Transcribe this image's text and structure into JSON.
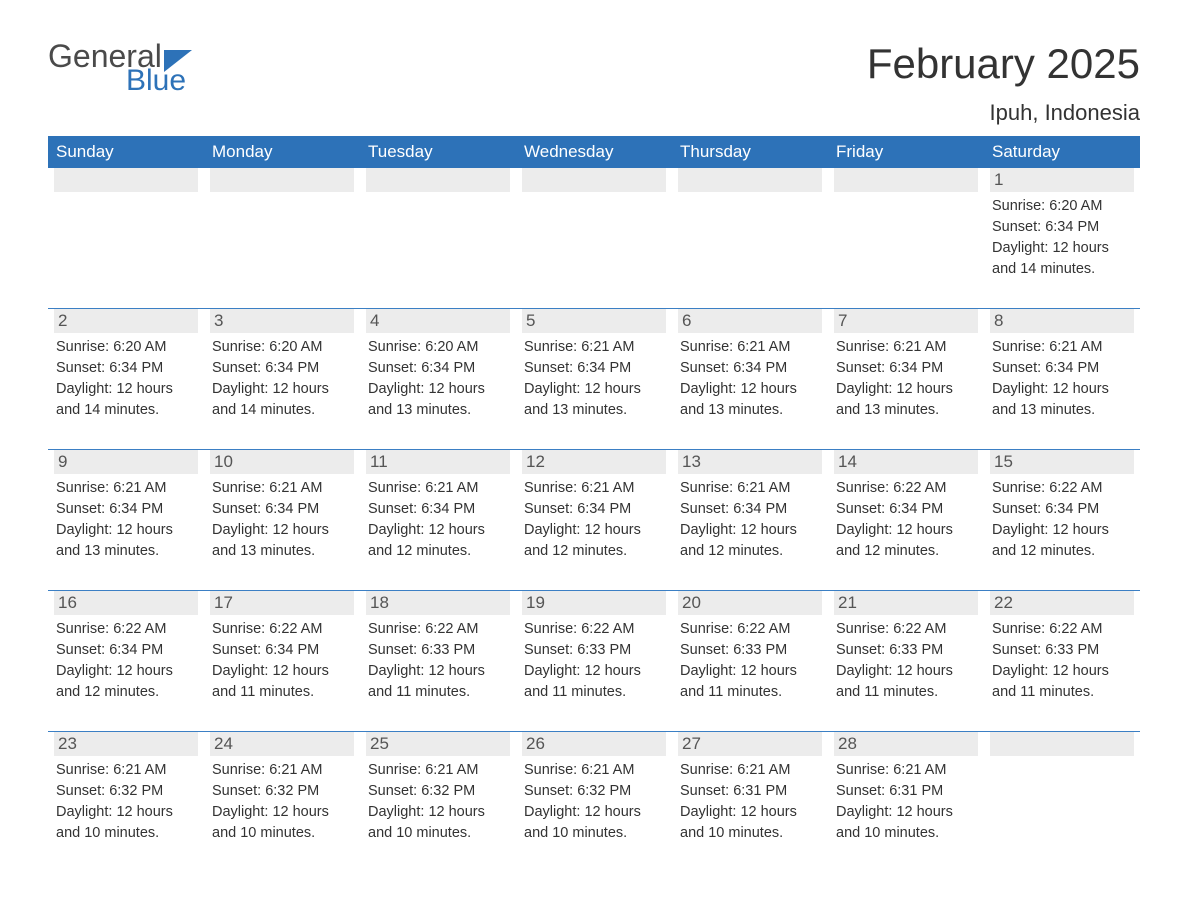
{
  "logo": {
    "text_general": "General",
    "text_blue": "Blue",
    "icon_color": "#2d72b8"
  },
  "title": "February 2025",
  "location": "Ipuh, Indonesia",
  "colors": {
    "header_bg": "#2d72b8",
    "header_text": "#ffffff",
    "band_bg": "#ececec",
    "band_text": "#555555",
    "body_text": "#333333",
    "row_border": "#3b7fc4",
    "page_bg": "#ffffff"
  },
  "weekdays": [
    "Sunday",
    "Monday",
    "Tuesday",
    "Wednesday",
    "Thursday",
    "Friday",
    "Saturday"
  ],
  "weeks": [
    [
      {
        "day": "",
        "sunrise": "",
        "sunset": "",
        "daylight": ""
      },
      {
        "day": "",
        "sunrise": "",
        "sunset": "",
        "daylight": ""
      },
      {
        "day": "",
        "sunrise": "",
        "sunset": "",
        "daylight": ""
      },
      {
        "day": "",
        "sunrise": "",
        "sunset": "",
        "daylight": ""
      },
      {
        "day": "",
        "sunrise": "",
        "sunset": "",
        "daylight": ""
      },
      {
        "day": "",
        "sunrise": "",
        "sunset": "",
        "daylight": ""
      },
      {
        "day": "1",
        "sunrise": "Sunrise: 6:20 AM",
        "sunset": "Sunset: 6:34 PM",
        "daylight": "Daylight: 12 hours and 14 minutes."
      }
    ],
    [
      {
        "day": "2",
        "sunrise": "Sunrise: 6:20 AM",
        "sunset": "Sunset: 6:34 PM",
        "daylight": "Daylight: 12 hours and 14 minutes."
      },
      {
        "day": "3",
        "sunrise": "Sunrise: 6:20 AM",
        "sunset": "Sunset: 6:34 PM",
        "daylight": "Daylight: 12 hours and 14 minutes."
      },
      {
        "day": "4",
        "sunrise": "Sunrise: 6:20 AM",
        "sunset": "Sunset: 6:34 PM",
        "daylight": "Daylight: 12 hours and 13 minutes."
      },
      {
        "day": "5",
        "sunrise": "Sunrise: 6:21 AM",
        "sunset": "Sunset: 6:34 PM",
        "daylight": "Daylight: 12 hours and 13 minutes."
      },
      {
        "day": "6",
        "sunrise": "Sunrise: 6:21 AM",
        "sunset": "Sunset: 6:34 PM",
        "daylight": "Daylight: 12 hours and 13 minutes."
      },
      {
        "day": "7",
        "sunrise": "Sunrise: 6:21 AM",
        "sunset": "Sunset: 6:34 PM",
        "daylight": "Daylight: 12 hours and 13 minutes."
      },
      {
        "day": "8",
        "sunrise": "Sunrise: 6:21 AM",
        "sunset": "Sunset: 6:34 PM",
        "daylight": "Daylight: 12 hours and 13 minutes."
      }
    ],
    [
      {
        "day": "9",
        "sunrise": "Sunrise: 6:21 AM",
        "sunset": "Sunset: 6:34 PM",
        "daylight": "Daylight: 12 hours and 13 minutes."
      },
      {
        "day": "10",
        "sunrise": "Sunrise: 6:21 AM",
        "sunset": "Sunset: 6:34 PM",
        "daylight": "Daylight: 12 hours and 13 minutes."
      },
      {
        "day": "11",
        "sunrise": "Sunrise: 6:21 AM",
        "sunset": "Sunset: 6:34 PM",
        "daylight": "Daylight: 12 hours and 12 minutes."
      },
      {
        "day": "12",
        "sunrise": "Sunrise: 6:21 AM",
        "sunset": "Sunset: 6:34 PM",
        "daylight": "Daylight: 12 hours and 12 minutes."
      },
      {
        "day": "13",
        "sunrise": "Sunrise: 6:21 AM",
        "sunset": "Sunset: 6:34 PM",
        "daylight": "Daylight: 12 hours and 12 minutes."
      },
      {
        "day": "14",
        "sunrise": "Sunrise: 6:22 AM",
        "sunset": "Sunset: 6:34 PM",
        "daylight": "Daylight: 12 hours and 12 minutes."
      },
      {
        "day": "15",
        "sunrise": "Sunrise: 6:22 AM",
        "sunset": "Sunset: 6:34 PM",
        "daylight": "Daylight: 12 hours and 12 minutes."
      }
    ],
    [
      {
        "day": "16",
        "sunrise": "Sunrise: 6:22 AM",
        "sunset": "Sunset: 6:34 PM",
        "daylight": "Daylight: 12 hours and 12 minutes."
      },
      {
        "day": "17",
        "sunrise": "Sunrise: 6:22 AM",
        "sunset": "Sunset: 6:34 PM",
        "daylight": "Daylight: 12 hours and 11 minutes."
      },
      {
        "day": "18",
        "sunrise": "Sunrise: 6:22 AM",
        "sunset": "Sunset: 6:33 PM",
        "daylight": "Daylight: 12 hours and 11 minutes."
      },
      {
        "day": "19",
        "sunrise": "Sunrise: 6:22 AM",
        "sunset": "Sunset: 6:33 PM",
        "daylight": "Daylight: 12 hours and 11 minutes."
      },
      {
        "day": "20",
        "sunrise": "Sunrise: 6:22 AM",
        "sunset": "Sunset: 6:33 PM",
        "daylight": "Daylight: 12 hours and 11 minutes."
      },
      {
        "day": "21",
        "sunrise": "Sunrise: 6:22 AM",
        "sunset": "Sunset: 6:33 PM",
        "daylight": "Daylight: 12 hours and 11 minutes."
      },
      {
        "day": "22",
        "sunrise": "Sunrise: 6:22 AM",
        "sunset": "Sunset: 6:33 PM",
        "daylight": "Daylight: 12 hours and 11 minutes."
      }
    ],
    [
      {
        "day": "23",
        "sunrise": "Sunrise: 6:21 AM",
        "sunset": "Sunset: 6:32 PM",
        "daylight": "Daylight: 12 hours and 10 minutes."
      },
      {
        "day": "24",
        "sunrise": "Sunrise: 6:21 AM",
        "sunset": "Sunset: 6:32 PM",
        "daylight": "Daylight: 12 hours and 10 minutes."
      },
      {
        "day": "25",
        "sunrise": "Sunrise: 6:21 AM",
        "sunset": "Sunset: 6:32 PM",
        "daylight": "Daylight: 12 hours and 10 minutes."
      },
      {
        "day": "26",
        "sunrise": "Sunrise: 6:21 AM",
        "sunset": "Sunset: 6:32 PM",
        "daylight": "Daylight: 12 hours and 10 minutes."
      },
      {
        "day": "27",
        "sunrise": "Sunrise: 6:21 AM",
        "sunset": "Sunset: 6:31 PM",
        "daylight": "Daylight: 12 hours and 10 minutes."
      },
      {
        "day": "28",
        "sunrise": "Sunrise: 6:21 AM",
        "sunset": "Sunset: 6:31 PM",
        "daylight": "Daylight: 12 hours and 10 minutes."
      },
      {
        "day": "",
        "sunrise": "",
        "sunset": "",
        "daylight": ""
      }
    ]
  ]
}
